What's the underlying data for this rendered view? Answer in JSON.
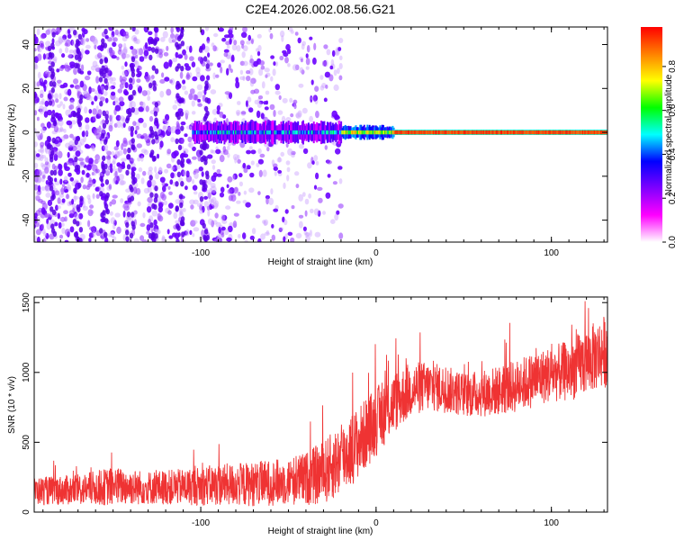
{
  "title": "C2E4.2026.002.08.56.G21",
  "chart_data": [
    {
      "type": "heatmap",
      "xlabel": "Height of straight line (km)",
      "ylabel": "Frequency (Hz)",
      "xlim": [
        -195,
        132
      ],
      "ylim": [
        -50,
        48
      ],
      "xticks": [
        -100,
        0,
        100
      ],
      "xtick_labels": [
        "-100",
        "0",
        "100"
      ],
      "yticks": [
        -40,
        -20,
        0,
        20,
        40
      ],
      "ytick_labels": [
        "-40",
        "-20",
        "0",
        "20",
        "40"
      ],
      "colorbar": {
        "label": "Normalized spectral amplitude",
        "range": [
          0,
          0.98
        ],
        "ticks": [
          0.0,
          0.2,
          0.4,
          0.6,
          0.8
        ],
        "tick_labels": [
          "0.0",
          "0.2",
          "0.4",
          "0.6",
          "0.8"
        ],
        "colormap": [
          "#ffffff",
          "#ff00ff",
          "#8000ff",
          "#0000ff",
          "#00ffff",
          "#00ff00",
          "#ffff00",
          "#ff8000",
          "#ff0000"
        ]
      },
      "features": {
        "signal_line_frequency_hz": 0,
        "signal_line_start_km": -105,
        "noise_region_xmax_km": -25,
        "noise_color": "#7a1aff"
      },
      "grid": false
    },
    {
      "type": "line",
      "xlabel": "Height of straight line (km)",
      "ylabel": "SNR (10 * v/v)",
      "xlim": [
        -195,
        132
      ],
      "ylim": [
        0,
        1540
      ],
      "xticks": [
        -100,
        0,
        100
      ],
      "xtick_labels": [
        "-100",
        "0",
        "100"
      ],
      "yticks": [
        0,
        500,
        1000,
        1500
      ],
      "ytick_labels": [
        "0",
        "500",
        "1000",
        "1500"
      ],
      "color": "#ef3333",
      "grid": false,
      "x": [
        -195,
        -170,
        -150,
        -130,
        -110,
        -90,
        -70,
        -50,
        -40,
        -30,
        -20,
        -10,
        0,
        10,
        20,
        30,
        40,
        50,
        60,
        70,
        80,
        90,
        100,
        110,
        120,
        130
      ],
      "mean": [
        150,
        160,
        185,
        175,
        180,
        195,
        200,
        220,
        240,
        280,
        380,
        500,
        650,
        780,
        880,
        900,
        880,
        840,
        850,
        870,
        900,
        950,
        990,
        1010,
        1080,
        1150
      ],
      "spread": [
        100,
        110,
        140,
        120,
        130,
        150,
        160,
        170,
        190,
        230,
        260,
        260,
        250,
        220,
        200,
        180,
        170,
        160,
        170,
        180,
        190,
        200,
        200,
        220,
        240,
        260
      ]
    }
  ]
}
